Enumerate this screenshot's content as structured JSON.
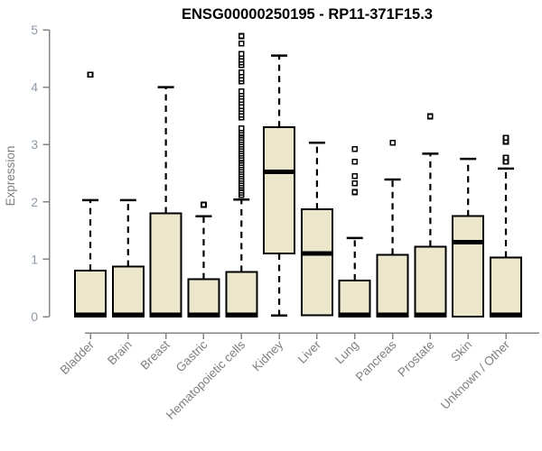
{
  "colors": {
    "background": "#FFFFFF",
    "box_fill": "#ECE7CB",
    "box_stroke": "#000000",
    "median": "#000000",
    "whisker": "#000000",
    "outlier_stroke": "#000000",
    "outlier_fill": "#FFFFFF",
    "axis_line": "#848484",
    "y_tick_label": "#8C99A6",
    "x_tick_label": "#7F7F7F",
    "axis_title": "#7F7F7F",
    "title_color": "#000000"
  },
  "chart_data": {
    "type": "boxplot",
    "title": "ENSG00000250195 - RP11-371F15.3",
    "xlabel": "",
    "ylabel": "Expression",
    "ylim": [
      0,
      5
    ],
    "y_ticks": [
      0,
      1,
      2,
      3,
      4,
      5
    ],
    "grid": false,
    "legend": "none",
    "categories": [
      "Bladder",
      "Brain",
      "Breast",
      "Gastric",
      "Hematopoietic cells",
      "Kidney",
      "Liver",
      "Lung",
      "Pancreas",
      "Prostate",
      "Skin",
      "Unknown / Other"
    ],
    "series": [
      {
        "name": "Bladder",
        "whisker_low": 0,
        "q1": 0,
        "median": 0.03,
        "q3": 0.8,
        "whisker_high": 2.03,
        "outliers": [
          4.22
        ]
      },
      {
        "name": "Brain",
        "whisker_low": 0,
        "q1": 0,
        "median": 0.03,
        "q3": 0.87,
        "whisker_high": 2.03,
        "outliers": []
      },
      {
        "name": "Breast",
        "whisker_low": 0,
        "q1": 0,
        "median": 0.03,
        "q3": 1.8,
        "whisker_high": 4.0,
        "outliers": []
      },
      {
        "name": "Gastric",
        "whisker_low": 0,
        "q1": 0,
        "median": 0.03,
        "q3": 0.65,
        "whisker_high": 1.75,
        "outliers": [
          1.95
        ]
      },
      {
        "name": "Hematopoietic cells",
        "whisker_low": 0,
        "q1": 0,
        "median": 0.03,
        "q3": 0.78,
        "whisker_high": 2.04,
        "outliers": [
          2.12,
          2.16,
          2.2,
          2.24,
          2.28,
          2.32,
          2.36,
          2.4,
          2.44,
          2.48,
          2.52,
          2.56,
          2.6,
          2.64,
          2.68,
          2.72,
          2.76,
          2.8,
          2.84,
          2.88,
          2.92,
          2.96,
          3.0,
          3.04,
          3.08,
          3.12,
          3.16,
          3.2,
          3.24,
          3.28,
          3.47,
          3.52,
          3.57,
          3.62,
          3.67,
          3.73,
          3.78,
          3.83,
          3.88,
          3.93,
          4.1,
          4.15,
          4.2,
          4.26,
          4.38,
          4.43,
          4.48,
          4.53,
          4.58,
          4.76,
          4.89
        ]
      },
      {
        "name": "Kidney",
        "whisker_low": 0.02,
        "q1": 1.1,
        "median": 2.52,
        "q3": 3.3,
        "whisker_high": 4.55,
        "outliers": []
      },
      {
        "name": "Liver",
        "whisker_low": 0.02,
        "q1": 0.02,
        "median": 1.1,
        "q3": 1.87,
        "whisker_high": 3.03,
        "outliers": []
      },
      {
        "name": "Lung",
        "whisker_low": 0,
        "q1": 0,
        "median": 0.03,
        "q3": 0.63,
        "whisker_high": 1.37,
        "outliers": [
          2.17,
          2.32,
          2.45,
          2.7,
          2.92
        ]
      },
      {
        "name": "Pancreas",
        "whisker_low": 0,
        "q1": 0,
        "median": 0.03,
        "q3": 1.08,
        "whisker_high": 2.39,
        "outliers": [
          3.03
        ]
      },
      {
        "name": "Prostate",
        "whisker_low": 0,
        "q1": 0,
        "median": 0.03,
        "q3": 1.22,
        "whisker_high": 2.84,
        "outliers": [
          3.49
        ]
      },
      {
        "name": "Skin",
        "whisker_low": 0,
        "q1": 0,
        "median": 1.3,
        "q3": 1.75,
        "whisker_high": 2.75,
        "outliers": []
      },
      {
        "name": "Unknown / Other",
        "whisker_low": 0,
        "q1": 0,
        "median": 0.03,
        "q3": 1.03,
        "whisker_high": 2.58,
        "outliers": [
          2.7,
          2.77,
          3.05,
          3.12
        ]
      }
    ]
  }
}
